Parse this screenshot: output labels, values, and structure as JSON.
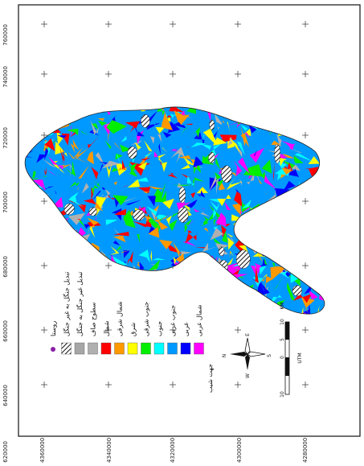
{
  "map": {
    "x_ticks": [
      "620000",
      "640000",
      "660000",
      "680000",
      "700000",
      "720000",
      "740000",
      "760000"
    ],
    "y_ticks": [
      "4360000",
      "4340000",
      "4320000",
      "4300000",
      "4280000"
    ],
    "legend": {
      "title": "جهت شیب",
      "items": [
        {
          "label": "روستا",
          "color": "#8a1fa8",
          "kind": "dot"
        },
        {
          "label": "تبدیل جنگل به غیر جنگل",
          "color": "#222222",
          "kind": "hatch"
        },
        {
          "label": "تبدیل غیر جنگل به جنگل",
          "color": "#a6a6a6",
          "kind": "box"
        },
        {
          "label": "سطوح صاف",
          "color": "#b0b0b0",
          "kind": "box"
        },
        {
          "label": "شمال",
          "color": "#ff0000",
          "kind": "box"
        },
        {
          "label": "شمال شرقی",
          "color": "#ff9900",
          "kind": "box"
        },
        {
          "label": "شرق",
          "color": "#ffff00",
          "kind": "box"
        },
        {
          "label": "جنوب شرقی",
          "color": "#00ee00",
          "kind": "box"
        },
        {
          "label": "جنوب",
          "color": "#00ffff",
          "kind": "box"
        },
        {
          "label": "جنوب غربی",
          "color": "#0099ff",
          "kind": "box"
        },
        {
          "label": "غربی",
          "color": "#0000ff",
          "kind": "box"
        },
        {
          "label": "شمال غربی",
          "color": "#ff00ff",
          "kind": "box"
        }
      ]
    },
    "north_arrow": {
      "n": "N",
      "e": "E",
      "w": "W",
      "s": "S"
    },
    "scale_bar": {
      "ticks": [
        "10",
        "5",
        "0",
        "10"
      ],
      "unit": "KM",
      "projection": "UTM"
    }
  }
}
